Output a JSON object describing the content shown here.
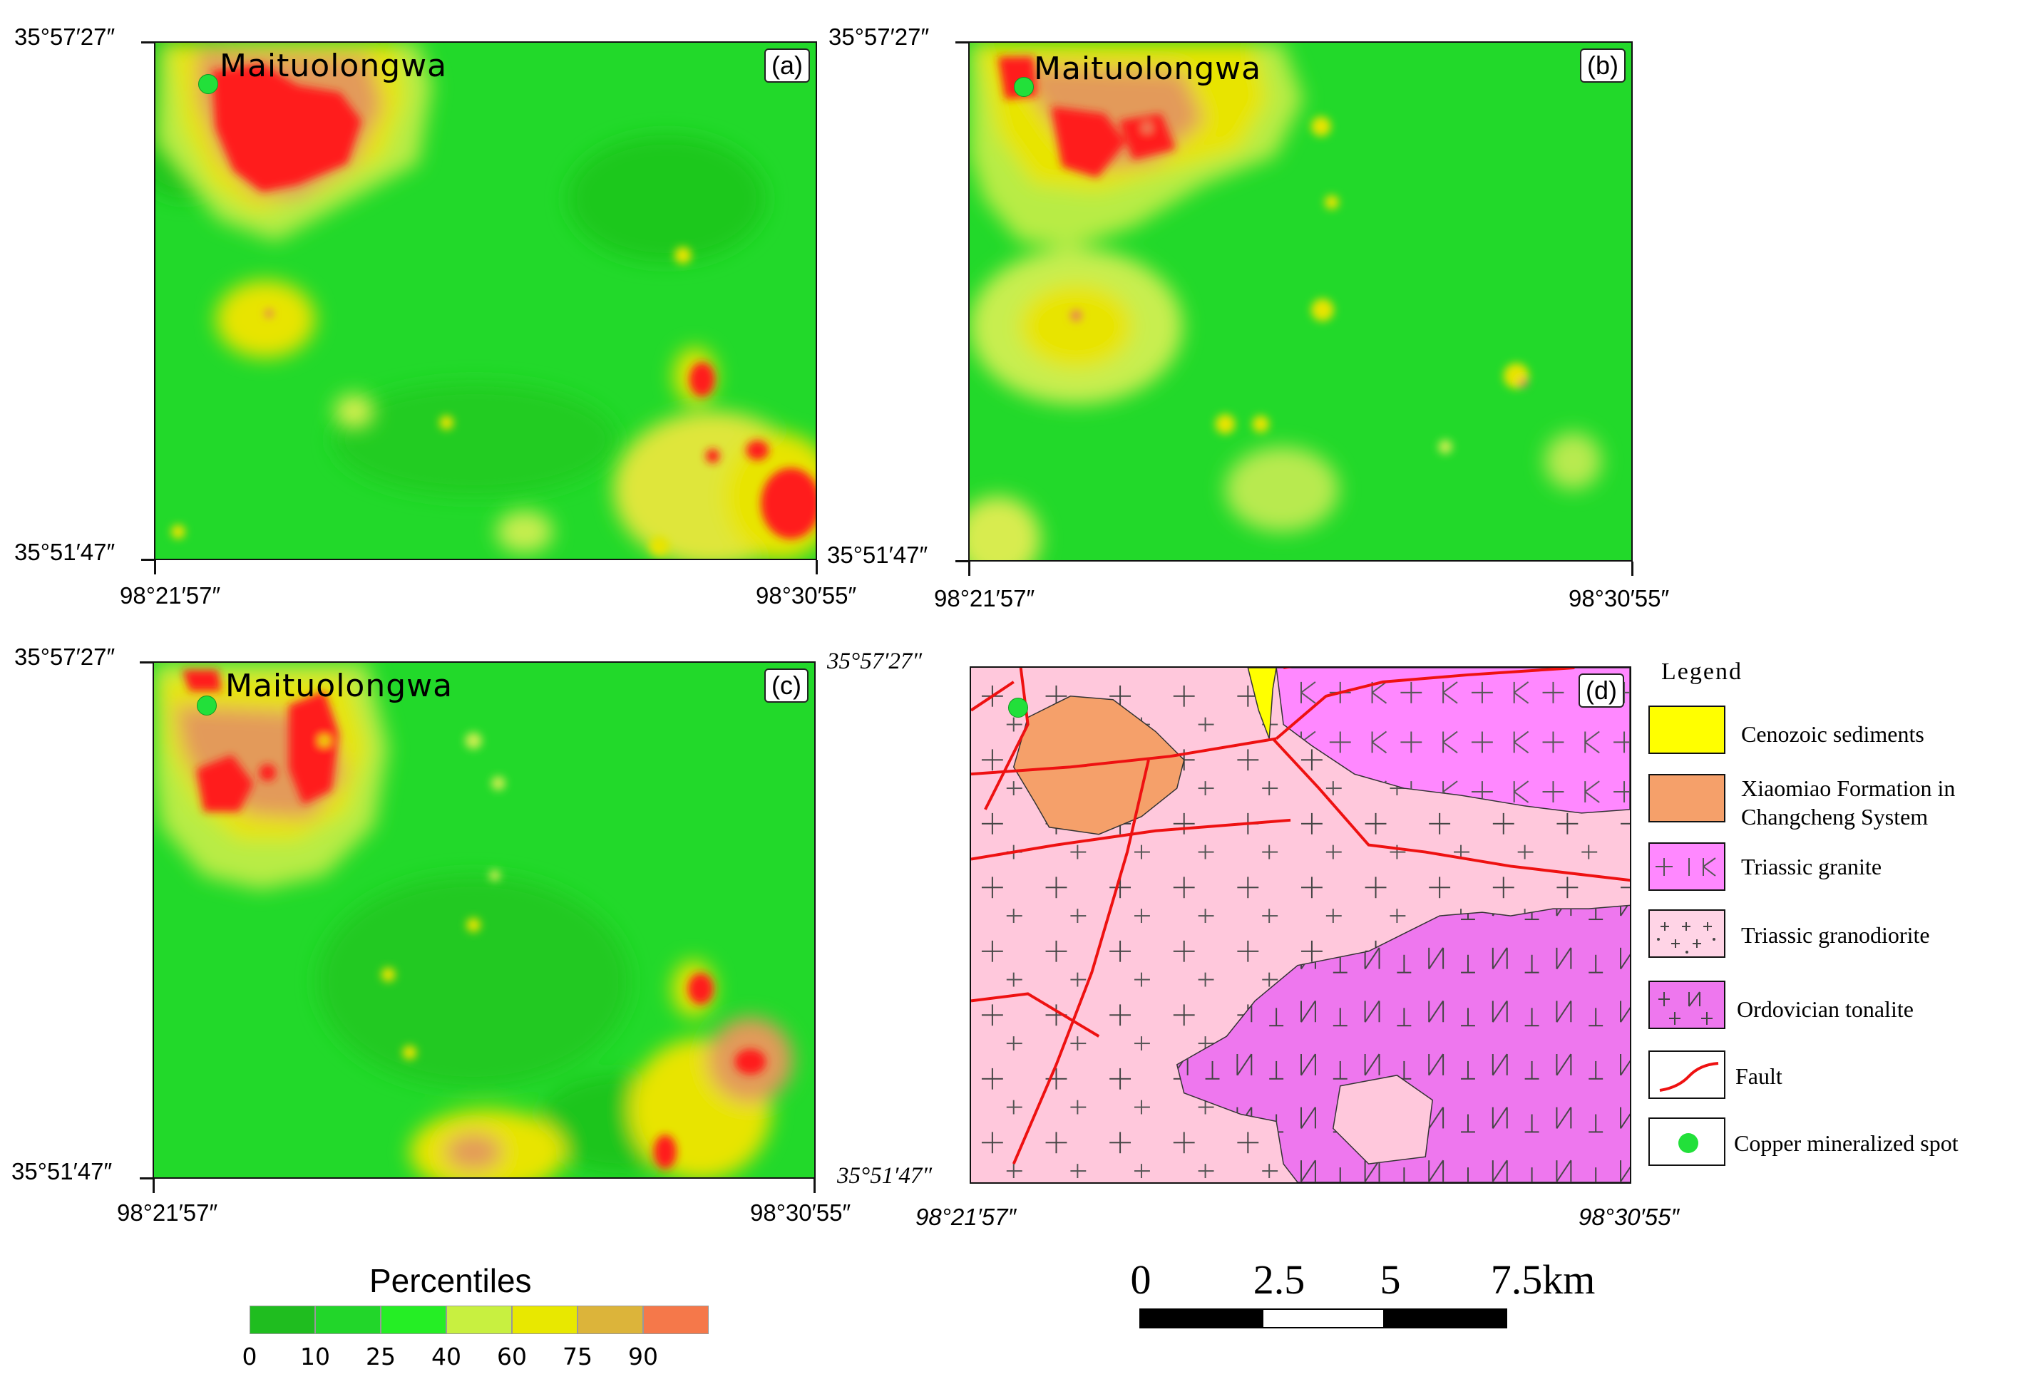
{
  "panels": {
    "a": {
      "label": "(a)",
      "site": "Maituolongwa"
    },
    "b": {
      "label": "(b)",
      "site": "Maituolongwa"
    },
    "c": {
      "label": "(c)",
      "site": "Maituolongwa"
    },
    "d": {
      "label": "(d)"
    }
  },
  "coords": {
    "north": "35°57′27″",
    "south": "35°51′47″",
    "west": "98°21′57″",
    "east": "98°30′55″"
  },
  "percentile_legend": {
    "title": "Percentiles",
    "ticks": [
      "0",
      "10",
      "25",
      "40",
      "60",
      "75",
      "90"
    ],
    "colors": [
      "#1fbd1f",
      "#22d62a",
      "#25ee25",
      "#c8f040",
      "#e8e800",
      "#dcb43a",
      "#f5784a"
    ]
  },
  "geology_legend": {
    "title": "Legend",
    "items": [
      {
        "name": "cenozoic",
        "label": "Cenozoic sediments",
        "color": "#ffff00"
      },
      {
        "name": "xiaomiao",
        "label_lines": [
          "Xiaomiao Formation in",
          "Changcheng System"
        ],
        "color": "#f5a06a"
      },
      {
        "name": "triassic-granite",
        "label": "Triassic granite",
        "color": "#ff88ff"
      },
      {
        "name": "triassic-granodiorite",
        "label": "Triassic granodiorite",
        "color": "#ffd4e6"
      },
      {
        "name": "ordovician-tonalite",
        "label": "Ordovician tonalite",
        "color": "#ee77ee"
      },
      {
        "name": "fault",
        "label": "Fault",
        "color": "#ee1111"
      },
      {
        "name": "copper-spot",
        "label": "Copper mineralized spot",
        "color": "#22e03a"
      }
    ]
  },
  "scale_bar": {
    "labels": [
      "0",
      "2.5",
      "5",
      "7.5km"
    ]
  }
}
